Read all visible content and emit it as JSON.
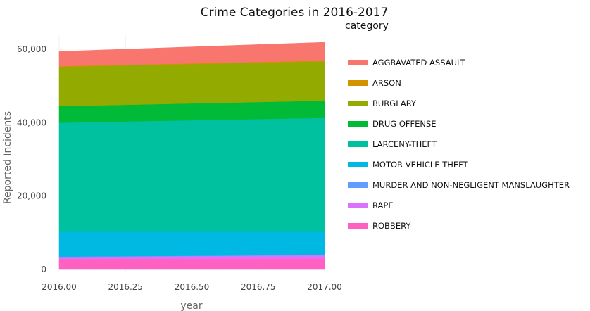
{
  "chart_data": {
    "type": "area",
    "stacked": true,
    "title": "Crime Categories in 2016-2017",
    "xlabel": "year",
    "ylabel": "Reported Incidents",
    "x": [
      2016,
      2017
    ],
    "xlim": [
      2016,
      2017
    ],
    "ylim": [
      0,
      62000
    ],
    "x_ticks": [
      "2016.00",
      "2016.25",
      "2016.50",
      "2016.75",
      "2017.00"
    ],
    "x_tick_values": [
      2016,
      2016.25,
      2016.5,
      2016.75,
      2017
    ],
    "y_ticks": [
      "0",
      "20,000",
      "40,000",
      "60,000"
    ],
    "y_tick_values": [
      0,
      20000,
      40000,
      60000
    ],
    "grid": true,
    "legend_title": "category",
    "legend_position": "right",
    "series": [
      {
        "name": "ROBBERY",
        "color": "#FF61C3",
        "values": [
          2900,
          3000
        ]
      },
      {
        "name": "RAPE",
        "color": "#DB72FB",
        "values": [
          500,
          900
        ]
      },
      {
        "name": "MURDER AND NON-NEGLIGENT MANSLAUGHTER",
        "color": "#619CFF",
        "values": [
          100,
          100
        ]
      },
      {
        "name": "MOTOR VEHICLE THEFT",
        "color": "#00B9E3",
        "values": [
          6800,
          6300
        ]
      },
      {
        "name": "LARCENY-THEFT",
        "color": "#00C19F",
        "values": [
          29700,
          31000
        ]
      },
      {
        "name": "DRUG OFFENSE",
        "color": "#00BA38",
        "values": [
          4500,
          4700
        ]
      },
      {
        "name": "BURGLARY",
        "color": "#93AA00",
        "values": [
          10700,
          10700
        ]
      },
      {
        "name": "ARSON",
        "color": "#D39200",
        "values": [
          200,
          200
        ]
      },
      {
        "name": "AGGRAVATED ASSAULT",
        "color": "#F8766D",
        "values": [
          4000,
          5000
        ]
      }
    ]
  }
}
